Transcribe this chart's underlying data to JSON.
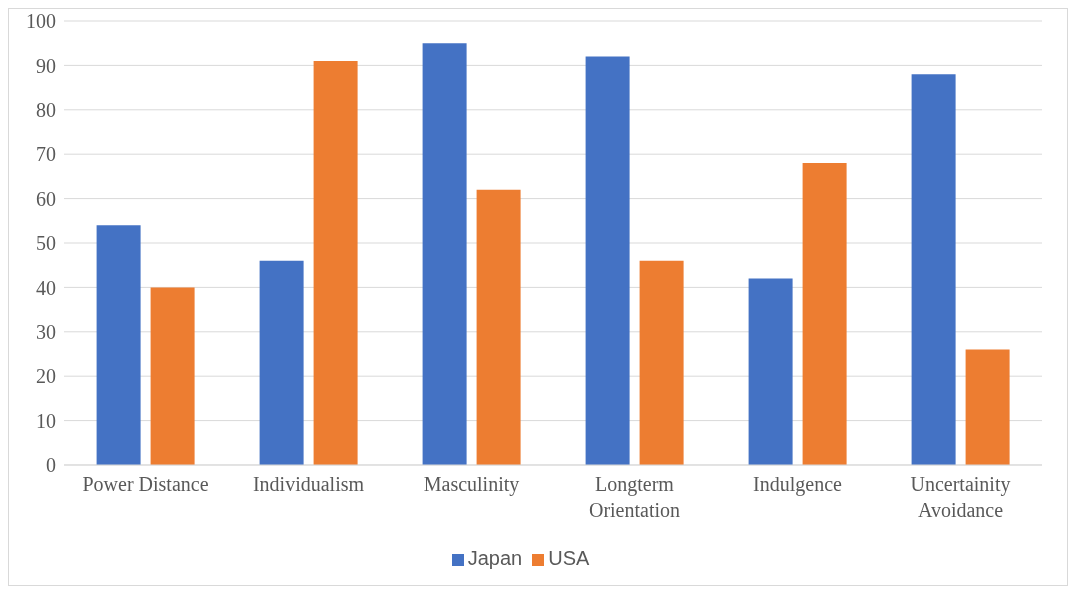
{
  "chart_data": {
    "type": "bar",
    "categories": [
      "Power Distance",
      "Individualism",
      "Masculinity",
      "Longterm Orientation",
      "Indulgence",
      "Uncertainity Avoidance"
    ],
    "series": [
      {
        "name": "Japan",
        "color": "#4472c4",
        "values": [
          54,
          46,
          95,
          92,
          42,
          88
        ]
      },
      {
        "name": "USA",
        "color": "#ed7d31",
        "values": [
          40,
          91,
          62,
          46,
          68,
          26
        ]
      }
    ],
    "ylim": [
      0,
      100
    ],
    "yticks": [
      0,
      10,
      20,
      30,
      40,
      50,
      60,
      70,
      80,
      90,
      100
    ],
    "grid": "y",
    "legend": "bottom"
  }
}
